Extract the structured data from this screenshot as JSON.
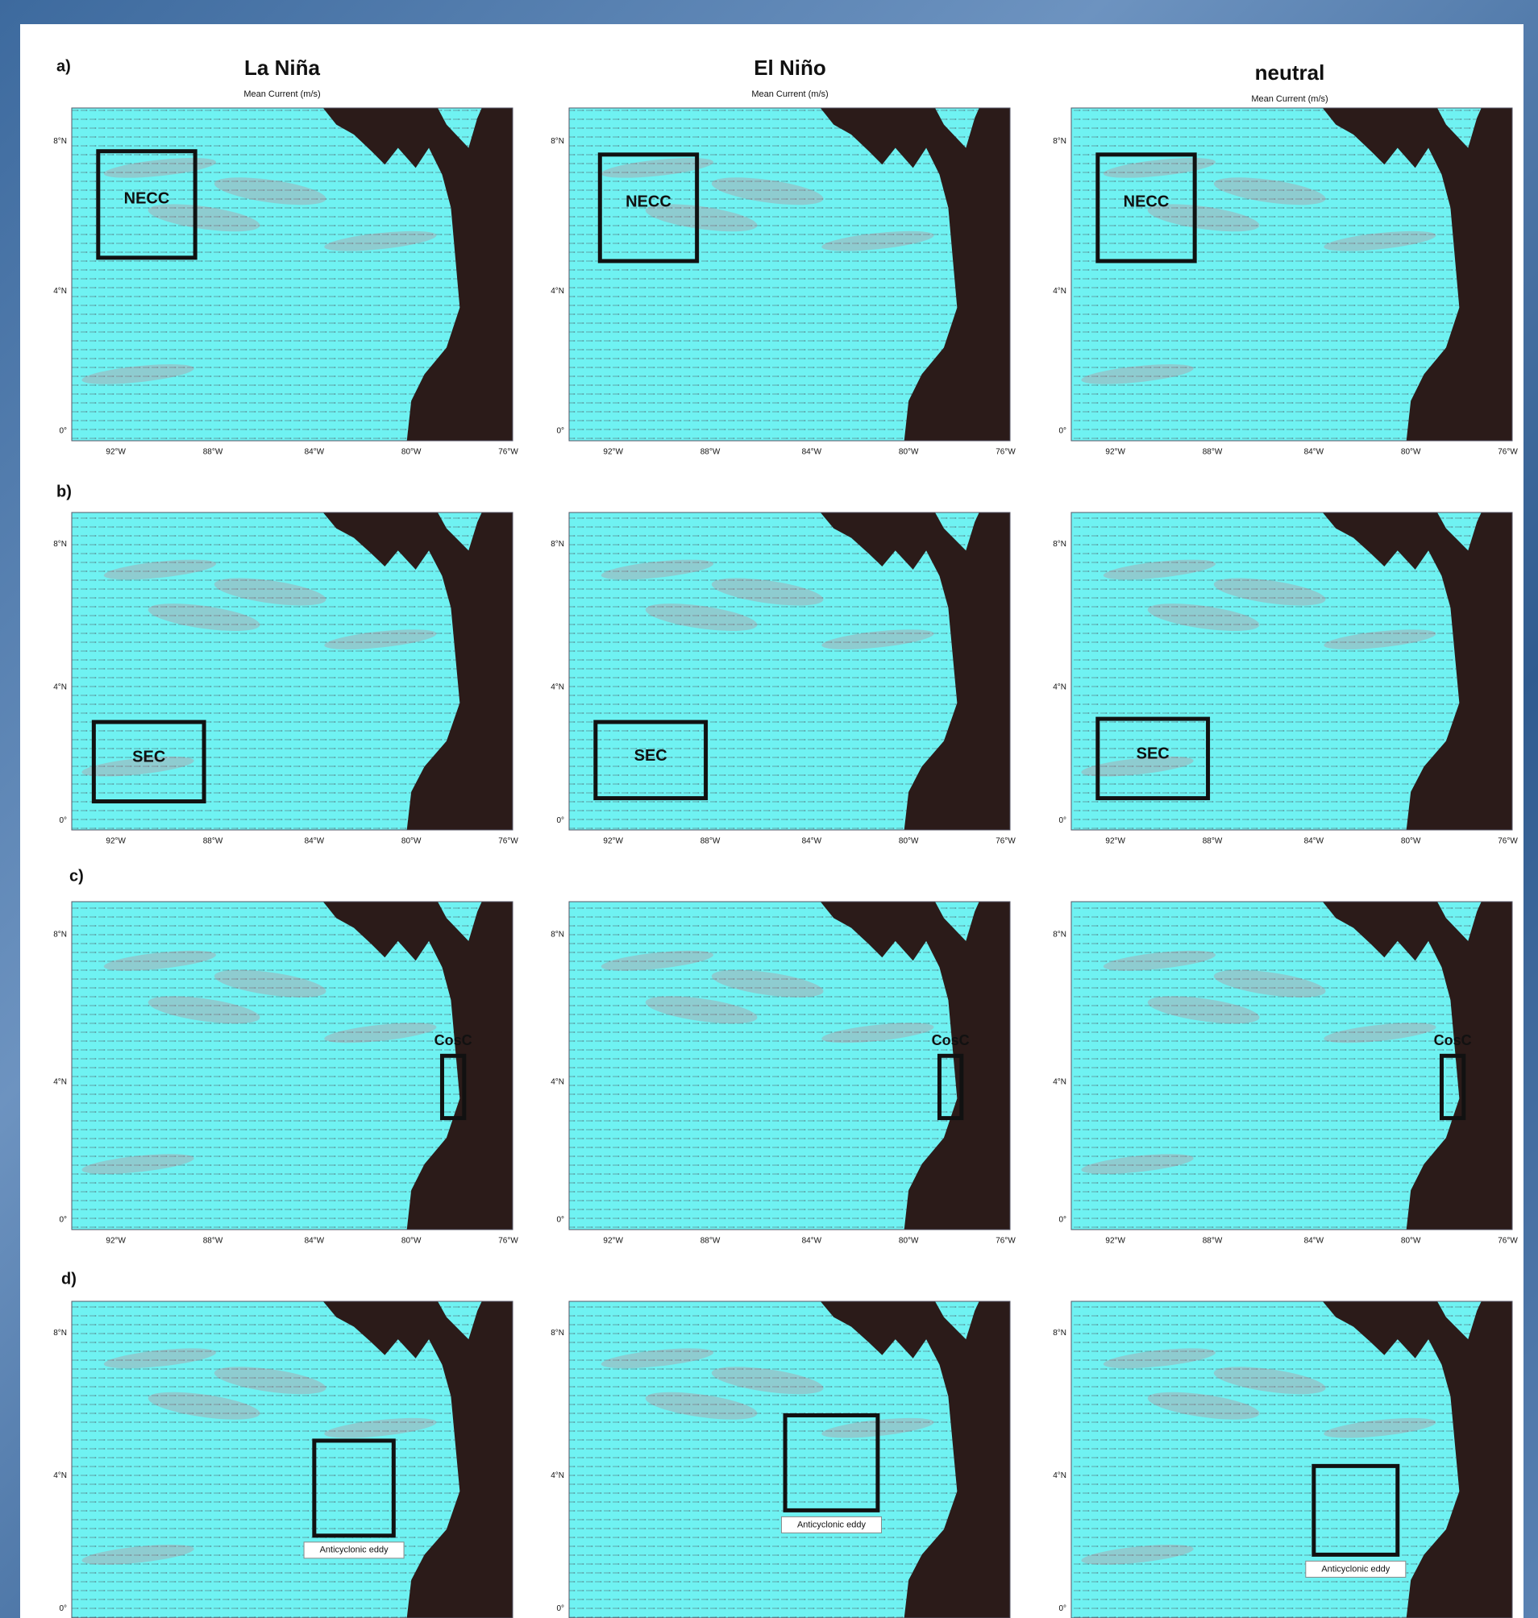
{
  "columns": [
    {
      "title": "La Niña",
      "subtitle": "Mean Current (m/s)"
    },
    {
      "title": "El Niño",
      "subtitle": "Mean Current (m/s)"
    },
    {
      "title": "neutral",
      "subtitle": "Mean Current (m/s)"
    }
  ],
  "rows": [
    {
      "label": "a)",
      "boxes": [
        "NECC",
        "NECC",
        "NECC"
      ]
    },
    {
      "label": "b)",
      "boxes": [
        "SEC",
        "SEC",
        "SEC"
      ]
    },
    {
      "label": "c)",
      "boxes": [
        "CosC",
        "CosC",
        "CosC"
      ]
    },
    {
      "label": "d)",
      "boxes": [
        "Anticyclonic eddy",
        "Anticyclonic eddy",
        "Anticyclonic eddy"
      ]
    }
  ],
  "axes": {
    "yticks": [
      "8°N",
      "4°N",
      "0°"
    ],
    "xticks": [
      "92°W",
      "88°W",
      "84°W",
      "80°W",
      "76°W"
    ]
  }
}
